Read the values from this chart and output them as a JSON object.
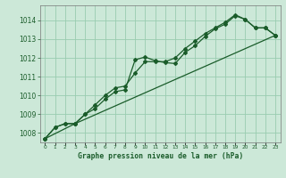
{
  "title": "Graphe pression niveau de la mer (hPa)",
  "background_color": "#cce8d8",
  "plot_bg_color": "#cce8d8",
  "grid_color": "#99ccb0",
  "line_color": "#1a5c2a",
  "ylim": [
    1007.5,
    1014.8
  ],
  "xlim": [
    -0.5,
    23.5
  ],
  "yticks": [
    1008,
    1009,
    1010,
    1011,
    1012,
    1013,
    1014
  ],
  "xtick_labels": [
    "0",
    "1",
    "2",
    "3",
    "4",
    "5",
    "6",
    "7",
    "8",
    "9",
    "10",
    "11",
    "12",
    "13",
    "14",
    "15",
    "16",
    "17",
    "18",
    "19",
    "20",
    "21",
    "22",
    "23"
  ],
  "series1_x": [
    0,
    1,
    2,
    3,
    4,
    5,
    6,
    7,
    8,
    9,
    10,
    11,
    12,
    13,
    14,
    15,
    16,
    17,
    18,
    19,
    20,
    21,
    22,
    23
  ],
  "series1_y": [
    1007.7,
    1008.3,
    1008.5,
    1008.5,
    1009.0,
    1009.3,
    1009.8,
    1010.2,
    1010.3,
    1011.9,
    1012.05,
    1011.85,
    1011.75,
    1011.7,
    1012.3,
    1012.65,
    1013.15,
    1013.55,
    1013.8,
    1014.25,
    1014.05,
    1013.6,
    1013.6,
    1013.2
  ],
  "series2_x": [
    0,
    1,
    2,
    3,
    4,
    5,
    6,
    7,
    8,
    9,
    10,
    11,
    12,
    13,
    14,
    15,
    16,
    17,
    18,
    19,
    20,
    21,
    22,
    23
  ],
  "series2_y": [
    1007.7,
    1008.3,
    1008.5,
    1008.5,
    1009.0,
    1009.5,
    1010.0,
    1010.4,
    1010.5,
    1011.2,
    1011.8,
    1011.8,
    1011.8,
    1012.0,
    1012.5,
    1012.9,
    1013.3,
    1013.6,
    1013.9,
    1014.3,
    1014.05,
    1013.6,
    1013.6,
    1013.2
  ],
  "series3_x": [
    0,
    3,
    23
  ],
  "series3_y": [
    1007.7,
    1008.5,
    1013.2
  ]
}
